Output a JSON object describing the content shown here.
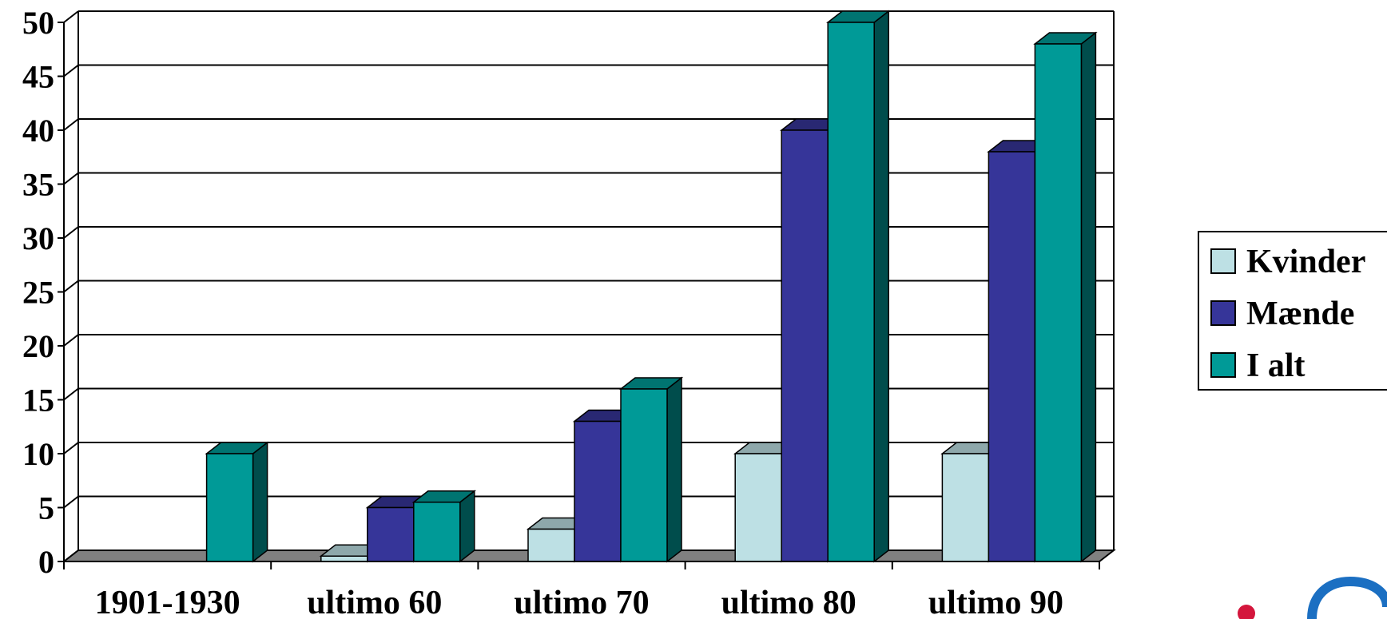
{
  "chart_data": {
    "type": "bar",
    "title": "",
    "xlabel": "",
    "ylabel": "",
    "ylim": [
      0,
      50
    ],
    "yticks": [
      0,
      5,
      10,
      15,
      20,
      25,
      30,
      35,
      40,
      45,
      50
    ],
    "grid": true,
    "legend_position": "right",
    "categories": [
      "1901-1930",
      "ultimo 60",
      "ultimo 70",
      "ultimo 80",
      "ultimo 90"
    ],
    "series": [
      {
        "name": "Kvinder",
        "color": "#bde0e4",
        "values": [
          0,
          0.5,
          3,
          10,
          10
        ]
      },
      {
        "name": "Mænde",
        "color": "#363599",
        "values": [
          0,
          5,
          13,
          40,
          38
        ]
      },
      {
        "name": "I alt",
        "color": "#009a97",
        "values": [
          10,
          5.5,
          16,
          50,
          48
        ]
      }
    ]
  }
}
